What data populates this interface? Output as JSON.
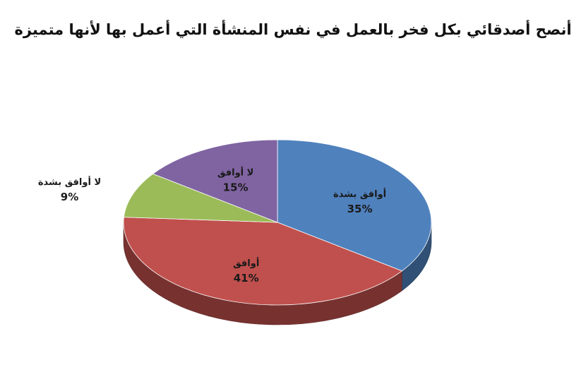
{
  "chart_data": {
    "type": "pie",
    "title": "أنصح أصدقائي بكل فخر بالعمل في نفس المنشأة التي أعمل بها لأنها متميزة",
    "categories": [
      "أوافق بشدة",
      "أوافق",
      "لا أوافق بشدة",
      "لا أوافق"
    ],
    "values": [
      35,
      41,
      9,
      15
    ],
    "value_labels": [
      "35%",
      "41%",
      "9%",
      "15%"
    ],
    "colors": [
      "#4f81bd",
      "#c0504d",
      "#9bbb59",
      "#8064a2"
    ],
    "style": "3d",
    "legend": "none",
    "labels_position": "on-slices"
  }
}
